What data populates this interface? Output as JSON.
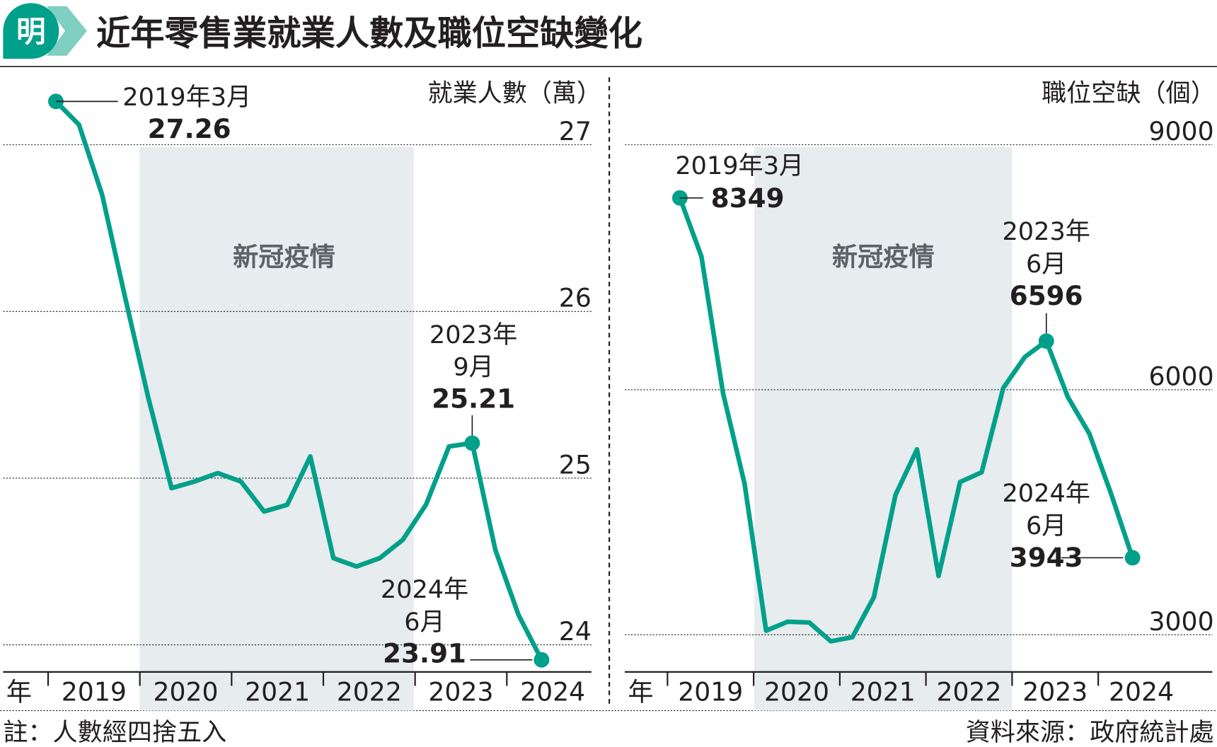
{
  "title": "近年零售業就業人數及職位空缺變化",
  "logo_text": "明",
  "colors": {
    "line": "#00a08a",
    "shade": "#e7ecee",
    "logo": "#00a08a"
  },
  "note": "註：人數經四捨五入",
  "source": "資料來源：政府統計處",
  "chart_data": [
    {
      "type": "line",
      "ylabel": "就業人數（萬）",
      "xlabel": "年",
      "x_ticks": [
        "2019",
        "2020",
        "2021",
        "2022",
        "2023",
        "2024"
      ],
      "y_ticks": [
        "27",
        "26",
        "25",
        "24"
      ],
      "ylim": [
        23.78,
        27.45
      ],
      "grid": true,
      "shaded_region": {
        "label": "新冠疫情",
        "from": "2020",
        "to": "2023"
      },
      "frequency": "quarterly, 2019-03 to 2024-06",
      "values": [
        27.26,
        27.12,
        26.7,
        26.08,
        25.48,
        24.94,
        24.98,
        25.03,
        24.98,
        24.8,
        24.84,
        25.13,
        24.52,
        24.47,
        24.52,
        24.63,
        24.84,
        25.19,
        25.21,
        24.57,
        24.18,
        23.91
      ],
      "annotations": [
        {
          "index": 0,
          "date": "2019年3月",
          "value": "27.26"
        },
        {
          "index": 18,
          "date": "2023年",
          "date2": "9月",
          "value": "25.21"
        },
        {
          "index": 21,
          "date": "2024年",
          "date2": "6月",
          "value": "23.91"
        }
      ]
    },
    {
      "type": "line",
      "ylabel": "職位空缺（個）",
      "xlabel": "年",
      "x_ticks": [
        "2019",
        "2020",
        "2021",
        "2022",
        "2023",
        "2024"
      ],
      "y_ticks": [
        "9000",
        "6000",
        "3000"
      ],
      "ylim": [
        2540,
        9000
      ],
      "grid": true,
      "shaded_region": {
        "label": "新冠疫情",
        "from": "2020",
        "to": "2023"
      },
      "frequency": "quarterly, 2019-03 to 2024-06",
      "values": [
        8349,
        7630,
        5960,
        4850,
        3050,
        3160,
        3150,
        2920,
        2970,
        3460,
        4710,
        5270,
        3720,
        4870,
        4990,
        6020,
        6400,
        6596,
        5910,
        5460,
        4730,
        3943
      ],
      "annotations": [
        {
          "index": 0,
          "date": "2019年3月",
          "value": "8349"
        },
        {
          "index": 17,
          "date": "2023年",
          "date2": "6月",
          "value": "6596"
        },
        {
          "index": 21,
          "date": "2024年",
          "date2": "6月",
          "value": "3943"
        }
      ]
    }
  ]
}
